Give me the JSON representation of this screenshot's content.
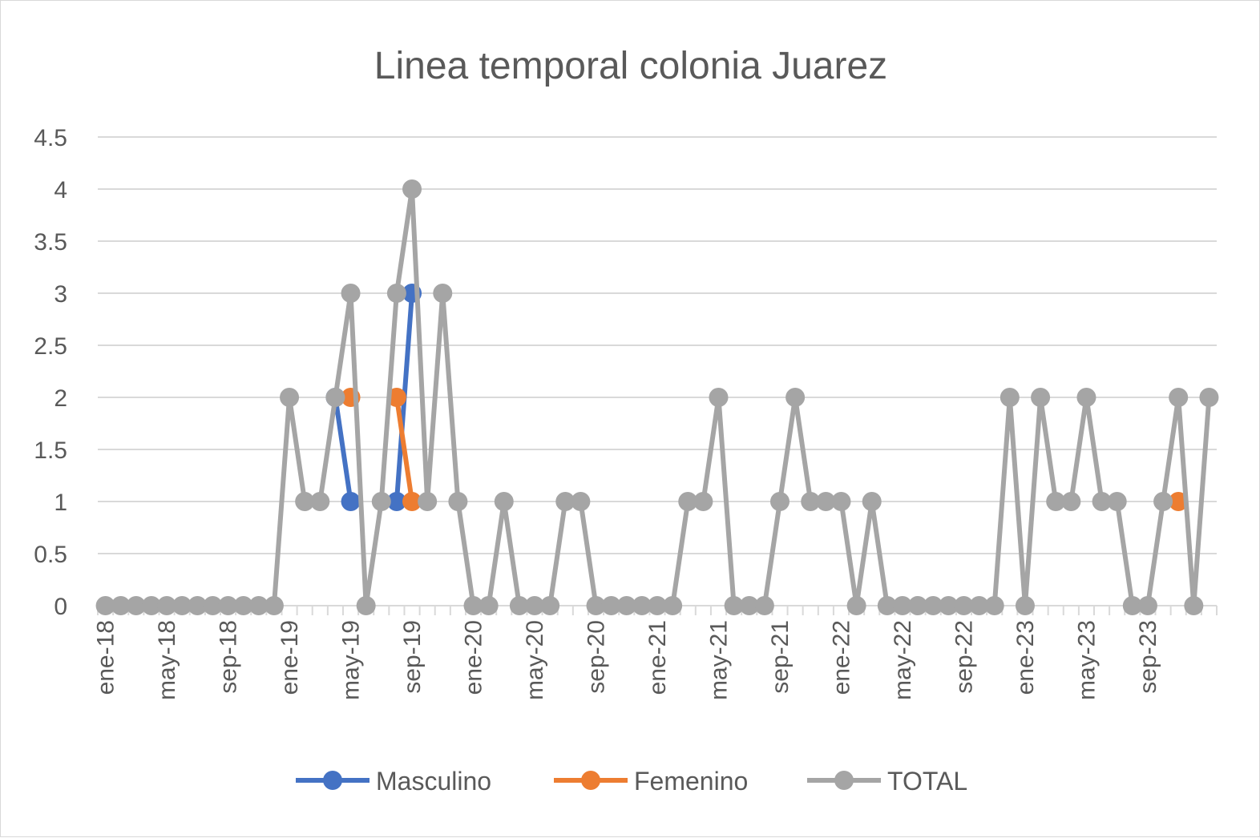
{
  "chart_data": {
    "type": "line",
    "title": "Linea temporal colonia Juarez",
    "xlabel": "",
    "ylabel": "",
    "ylim": [
      0,
      4.5
    ],
    "y_ticks": [
      "0",
      "0.5",
      "1",
      "1.5",
      "2",
      "2.5",
      "3",
      "3.5",
      "4",
      "4.5"
    ],
    "y_tick_values": [
      0,
      0.5,
      1,
      1.5,
      2,
      2.5,
      3,
      3.5,
      4,
      4.5
    ],
    "grid": true,
    "legend_position": "bottom",
    "x_tick_labels": [
      "ene-18",
      "may-18",
      "sep-18",
      "ene-19",
      "may-19",
      "sep-19",
      "ene-20",
      "may-20",
      "sep-20",
      "ene-21",
      "may-21",
      "sep-21",
      "ene-22",
      "may-22",
      "sep-22",
      "ene-23",
      "may-23",
      "sep-23"
    ],
    "x_tick_every": 4,
    "categories": [
      "ene-18",
      "feb-18",
      "mar-18",
      "abr-18",
      "may-18",
      "jun-18",
      "jul-18",
      "ago-18",
      "sep-18",
      "oct-18",
      "nov-18",
      "dic-18",
      "ene-19",
      "feb-19",
      "mar-19",
      "abr-19",
      "may-19",
      "jun-19",
      "jul-19",
      "ago-19",
      "sep-19",
      "oct-19",
      "nov-19",
      "dic-19",
      "ene-20",
      "feb-20",
      "mar-20",
      "abr-20",
      "may-20",
      "jun-20",
      "jul-20",
      "ago-20",
      "sep-20",
      "oct-20",
      "nov-20",
      "dic-20",
      "ene-21",
      "feb-21",
      "mar-21",
      "abr-21",
      "may-21",
      "jun-21",
      "jul-21",
      "ago-21",
      "sep-21",
      "oct-21",
      "nov-21",
      "dic-21",
      "ene-22",
      "feb-22",
      "mar-22",
      "abr-22",
      "may-22",
      "jun-22",
      "jul-22",
      "ago-22",
      "sep-22",
      "oct-22",
      "nov-22",
      "dic-22",
      "ene-23",
      "feb-23",
      "mar-23",
      "abr-23",
      "may-23",
      "jun-23",
      "jul-23",
      "ago-23",
      "sep-23",
      "oct-23",
      "nov-23",
      "dic-23",
      "ene-24"
    ],
    "series": [
      {
        "name": "Masculino",
        "color": "#4472C4",
        "values": [
          null,
          null,
          null,
          null,
          null,
          null,
          null,
          null,
          null,
          null,
          null,
          null,
          null,
          null,
          null,
          2,
          1,
          null,
          null,
          1,
          3,
          null,
          null,
          null,
          null,
          null,
          null,
          null,
          null,
          null,
          null,
          null,
          null,
          null,
          null,
          null,
          null,
          null,
          null,
          null,
          null,
          null,
          null,
          null,
          null,
          null,
          null,
          null,
          null,
          null,
          null,
          null,
          null,
          null,
          null,
          null,
          null,
          null,
          null,
          null,
          null,
          null,
          null,
          null,
          null,
          null,
          null,
          null,
          null,
          null,
          null,
          null,
          null
        ]
      },
      {
        "name": "Femenino",
        "color": "#ED7D31",
        "values": [
          null,
          null,
          null,
          null,
          null,
          null,
          null,
          null,
          null,
          null,
          null,
          null,
          null,
          null,
          null,
          null,
          2,
          null,
          null,
          2,
          1,
          null,
          null,
          null,
          null,
          null,
          null,
          null,
          null,
          null,
          null,
          null,
          null,
          null,
          null,
          null,
          null,
          null,
          null,
          null,
          null,
          null,
          null,
          null,
          null,
          null,
          null,
          null,
          null,
          null,
          null,
          null,
          null,
          null,
          null,
          null,
          null,
          null,
          null,
          null,
          null,
          null,
          null,
          null,
          null,
          null,
          null,
          null,
          null,
          null,
          1,
          null,
          null
        ]
      },
      {
        "name": "TOTAL",
        "color": "#A5A5A5",
        "values": [
          0,
          0,
          0,
          0,
          0,
          0,
          0,
          0,
          0,
          0,
          0,
          0,
          2,
          1,
          1,
          2,
          3,
          0,
          1,
          3,
          4,
          1,
          3,
          1,
          0,
          0,
          1,
          0,
          0,
          0,
          1,
          1,
          0,
          0,
          0,
          0,
          0,
          0,
          1,
          1,
          2,
          0,
          0,
          0,
          1,
          2,
          1,
          1,
          1,
          0,
          1,
          0,
          0,
          0,
          0,
          0,
          0,
          0,
          0,
          2,
          0,
          2,
          1,
          1,
          2,
          1,
          1,
          0,
          0,
          1,
          2,
          0,
          2
        ]
      }
    ]
  }
}
